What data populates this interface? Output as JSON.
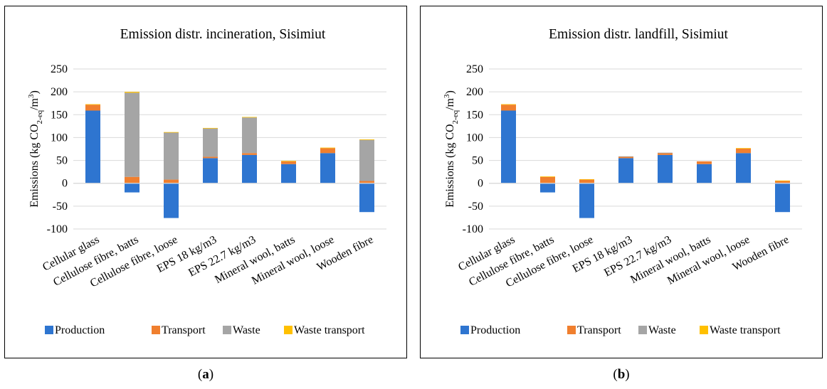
{
  "colors": {
    "production": "#2E75D0",
    "transport": "#F07F2E",
    "waste": "#A5A5A5",
    "waste_transport": "#FFC000",
    "grid": "#D9D9D9",
    "text": "#000000"
  },
  "captions": {
    "a": "a",
    "b": "b"
  },
  "chart_data": [
    {
      "type": "bar",
      "stacked": true,
      "title": "Emission distr. incineration, Sisimiut",
      "ylabel": "Emissions (kg CO2-eq/m3)",
      "ylim": [
        -100,
        250
      ],
      "yticks": [
        -100,
        -50,
        0,
        50,
        100,
        150,
        200,
        250
      ],
      "grid": true,
      "legend": "bottom",
      "categories": [
        "Cellular glass",
        "Cellulose fibre, batts",
        "Cellulose fibre, loose",
        "EPS 18 kg/m3",
        "EPS 22.7 kg/m3",
        "Mineral wool, batts",
        "Mineral wool, loose",
        "Wooden fibre"
      ],
      "series": [
        {
          "name": "Production",
          "values": [
            159,
            -20,
            -76,
            55,
            62,
            42,
            66,
            -63
          ]
        },
        {
          "name": "Transport",
          "values": [
            13,
            14,
            8,
            3,
            4,
            6,
            11,
            5
          ]
        },
        {
          "name": "Waste",
          "values": [
            0,
            184,
            103,
            62,
            78,
            0,
            0,
            90
          ]
        },
        {
          "name": "Waste transport",
          "values": [
            1,
            2,
            1,
            1,
            1,
            1,
            1,
            1
          ]
        }
      ]
    },
    {
      "type": "bar",
      "stacked": true,
      "title": "Emission distr. landfill, Sisimiut",
      "ylabel": "Emissions (kg CO2-eq/m3)",
      "ylim": [
        -100,
        250
      ],
      "yticks": [
        -100,
        -50,
        0,
        50,
        100,
        150,
        200,
        250
      ],
      "grid": true,
      "legend": "bottom",
      "categories": [
        "Cellular glass",
        "Cellulose fibre, batts",
        "Cellulose fibre, loose",
        "EPS 18 kg/m3",
        "EPS 22.7 kg/m3",
        "Mineral wool, batts",
        "Mineral wool, loose",
        "Wooden fibre"
      ],
      "series": [
        {
          "name": "Production",
          "values": [
            159,
            -20,
            -76,
            55,
            62,
            42,
            66,
            -63
          ]
        },
        {
          "name": "Transport",
          "values": [
            13,
            14,
            8,
            3,
            4,
            6,
            10,
            5
          ]
        },
        {
          "name": "Waste",
          "values": [
            0,
            0,
            0,
            1,
            1,
            0,
            0,
            0
          ]
        },
        {
          "name": "Waste transport",
          "values": [
            1,
            1,
            1,
            0,
            0,
            0,
            1,
            1
          ]
        }
      ]
    }
  ]
}
